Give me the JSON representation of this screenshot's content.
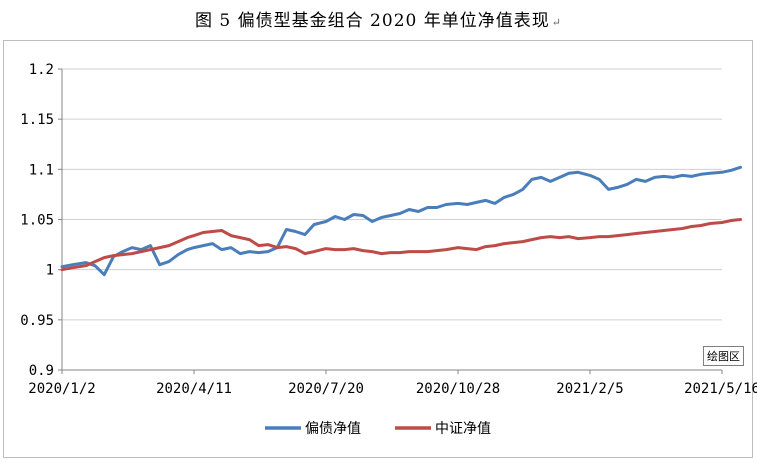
{
  "caption": "图 5  偏债型基金组合 2020 年单位净值表现",
  "caption_mark": "↵",
  "tooltip": "绘图区",
  "colors": {
    "bond_fund": "#4a7ebb",
    "index": "#be4b48",
    "grid": "#d0d0d0",
    "axis": "#868686"
  },
  "chart_data": {
    "type": "line",
    "title": "",
    "xlabel": "",
    "ylabel": "",
    "ylim": [
      0.9,
      1.2
    ],
    "yticks": [
      0.9,
      0.95,
      1,
      1.05,
      1.1,
      1.15,
      1.2
    ],
    "ytick_labels": [
      "0.9",
      "0.95",
      "1",
      "1.05",
      "1.1",
      "1.15",
      "1.2"
    ],
    "xticks": [
      "2020/1/2",
      "2020/4/11",
      "2020/7/20",
      "2020/10/28",
      "2021/2/5",
      "2021/5/16"
    ],
    "grid": true,
    "legend": "bottom",
    "series": [
      {
        "name": "偏债净值",
        "x": [
          "2020/1/2",
          "2020/1/10",
          "2020/1/20",
          "2020/1/27",
          "2020/2/3",
          "2020/2/10",
          "2020/2/17",
          "2020/2/24",
          "2020/3/2",
          "2020/3/9",
          "2020/3/16",
          "2020/3/23",
          "2020/3/30",
          "2020/4/6",
          "2020/4/11",
          "2020/4/18",
          "2020/4/25",
          "2020/5/2",
          "2020/5/9",
          "2020/5/16",
          "2020/5/23",
          "2020/5/30",
          "2020/6/6",
          "2020/6/13",
          "2020/6/20",
          "2020/6/27",
          "2020/7/4",
          "2020/7/11",
          "2020/7/20",
          "2020/7/27",
          "2020/8/3",
          "2020/8/10",
          "2020/8/17",
          "2020/8/24",
          "2020/8/31",
          "2020/9/7",
          "2020/9/14",
          "2020/9/21",
          "2020/9/28",
          "2020/10/5",
          "2020/10/12",
          "2020/10/19",
          "2020/10/28",
          "2020/11/4",
          "2020/11/11",
          "2020/11/18",
          "2020/11/25",
          "2020/12/2",
          "2020/12/9",
          "2020/12/16",
          "2020/12/23",
          "2020/12/30",
          "2021/1/6",
          "2021/1/13",
          "2021/1/20",
          "2021/1/27",
          "2021/2/5",
          "2021/2/12",
          "2021/2/19",
          "2021/2/26",
          "2021/3/5",
          "2021/3/12",
          "2021/3/19",
          "2021/3/26",
          "2021/4/2",
          "2021/4/9",
          "2021/4/16",
          "2021/4/23",
          "2021/4/30",
          "2021/5/7",
          "2021/5/16",
          "2021/5/23",
          "2021/5/30"
        ],
        "values": [
          1.003,
          1.005,
          1.007,
          1.004,
          0.995,
          1.013,
          1.018,
          1.022,
          1.02,
          1.024,
          1.005,
          1.008,
          1.015,
          1.02,
          1.022,
          1.024,
          1.026,
          1.02,
          1.022,
          1.016,
          1.018,
          1.017,
          1.018,
          1.022,
          1.04,
          1.038,
          1.035,
          1.045,
          1.048,
          1.053,
          1.05,
          1.055,
          1.054,
          1.048,
          1.052,
          1.054,
          1.056,
          1.06,
          1.058,
          1.062,
          1.062,
          1.065,
          1.066,
          1.065,
          1.067,
          1.069,
          1.066,
          1.072,
          1.075,
          1.08,
          1.09,
          1.092,
          1.088,
          1.092,
          1.096,
          1.097,
          1.094,
          1.09,
          1.08,
          1.082,
          1.085,
          1.09,
          1.088,
          1.092,
          1.093,
          1.092,
          1.094,
          1.093,
          1.095,
          1.096,
          1.097,
          1.099,
          1.102
        ]
      },
      {
        "name": "中证净值",
        "x": [
          "2020/1/2",
          "2020/1/10",
          "2020/1/20",
          "2020/1/27",
          "2020/2/3",
          "2020/2/10",
          "2020/2/17",
          "2020/2/24",
          "2020/3/2",
          "2020/3/9",
          "2020/3/16",
          "2020/3/23",
          "2020/3/30",
          "2020/4/6",
          "2020/4/11",
          "2020/4/18",
          "2020/4/25",
          "2020/5/2",
          "2020/5/9",
          "2020/5/16",
          "2020/5/23",
          "2020/5/30",
          "2020/6/6",
          "2020/6/13",
          "2020/6/20",
          "2020/6/27",
          "2020/7/4",
          "2020/7/11",
          "2020/7/20",
          "2020/7/27",
          "2020/8/3",
          "2020/8/10",
          "2020/8/17",
          "2020/8/24",
          "2020/8/31",
          "2020/9/7",
          "2020/9/14",
          "2020/9/21",
          "2020/9/28",
          "2020/10/5",
          "2020/10/12",
          "2020/10/19",
          "2020/10/28",
          "2020/11/4",
          "2020/11/11",
          "2020/11/18",
          "2020/11/25",
          "2020/12/2",
          "2020/12/9",
          "2020/12/16",
          "2020/12/23",
          "2020/12/30",
          "2021/1/6",
          "2021/1/13",
          "2021/1/20",
          "2021/1/27",
          "2021/2/5",
          "2021/2/12",
          "2021/2/19",
          "2021/2/26",
          "2021/3/5",
          "2021/3/12",
          "2021/3/19",
          "2021/3/26",
          "2021/4/2",
          "2021/4/9",
          "2021/4/16",
          "2021/4/23",
          "2021/4/30",
          "2021/5/7",
          "2021/5/16",
          "2021/5/23",
          "2021/5/30"
        ],
        "values": [
          1.0,
          1.002,
          1.004,
          1.008,
          1.012,
          1.014,
          1.015,
          1.016,
          1.018,
          1.02,
          1.022,
          1.024,
          1.028,
          1.032,
          1.034,
          1.037,
          1.038,
          1.039,
          1.034,
          1.032,
          1.03,
          1.024,
          1.025,
          1.022,
          1.023,
          1.021,
          1.016,
          1.018,
          1.021,
          1.02,
          1.02,
          1.021,
          1.019,
          1.018,
          1.016,
          1.017,
          1.017,
          1.018,
          1.018,
          1.018,
          1.019,
          1.02,
          1.022,
          1.021,
          1.02,
          1.023,
          1.024,
          1.026,
          1.027,
          1.028,
          1.03,
          1.032,
          1.033,
          1.032,
          1.033,
          1.031,
          1.032,
          1.033,
          1.033,
          1.034,
          1.035,
          1.036,
          1.037,
          1.038,
          1.039,
          1.04,
          1.041,
          1.043,
          1.044,
          1.046,
          1.047,
          1.049,
          1.05
        ]
      }
    ]
  }
}
